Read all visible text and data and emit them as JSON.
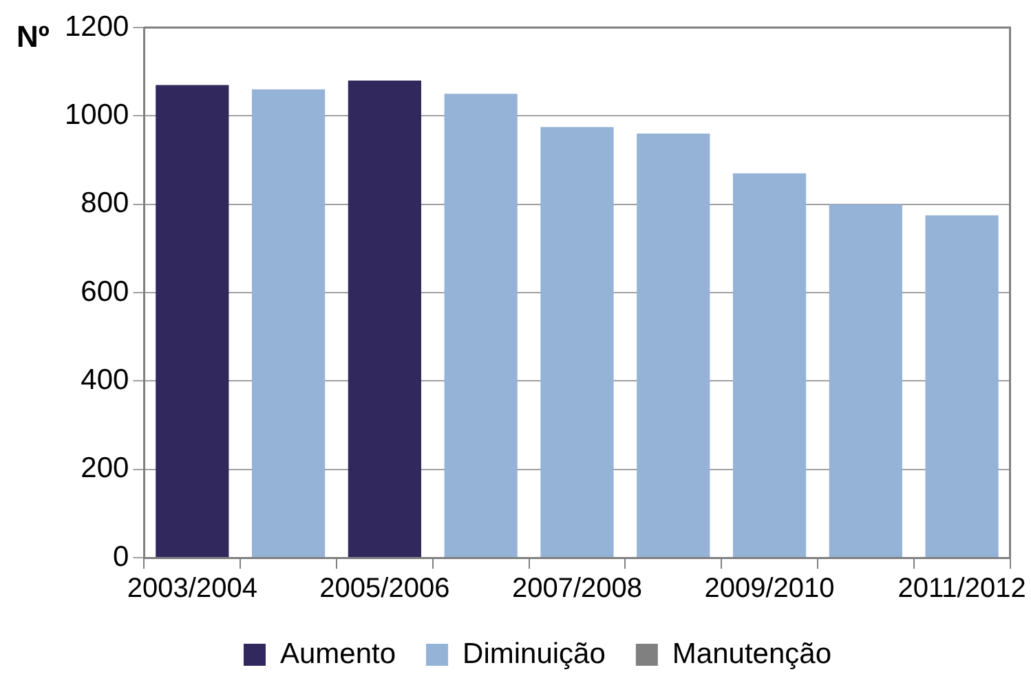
{
  "chart_data": {
    "type": "bar",
    "ylabel": "Nº",
    "categories": [
      "2003/2004",
      null,
      "2005/2006",
      null,
      "2007/2008",
      null,
      "2009/2010",
      null,
      "2011/2012"
    ],
    "stacked": true,
    "series": [
      {
        "name": "Aumento",
        "color": "#31295e",
        "values": [
          1070,
          null,
          1080,
          null,
          null,
          null,
          null,
          null,
          null
        ]
      },
      {
        "name": "Diminuição",
        "color": "#95b3d7",
        "values": [
          null,
          1060,
          null,
          1050,
          975,
          960,
          870,
          800,
          775
        ]
      },
      {
        "name": "Manutenção",
        "color": "#808080",
        "values": [
          null,
          null,
          null,
          null,
          null,
          null,
          null,
          null,
          null
        ]
      }
    ],
    "ylim": [
      0,
      1200
    ],
    "yticks": [
      0,
      200,
      400,
      600,
      800,
      1000,
      1200
    ],
    "grid": "y",
    "legend": "bottom"
  }
}
